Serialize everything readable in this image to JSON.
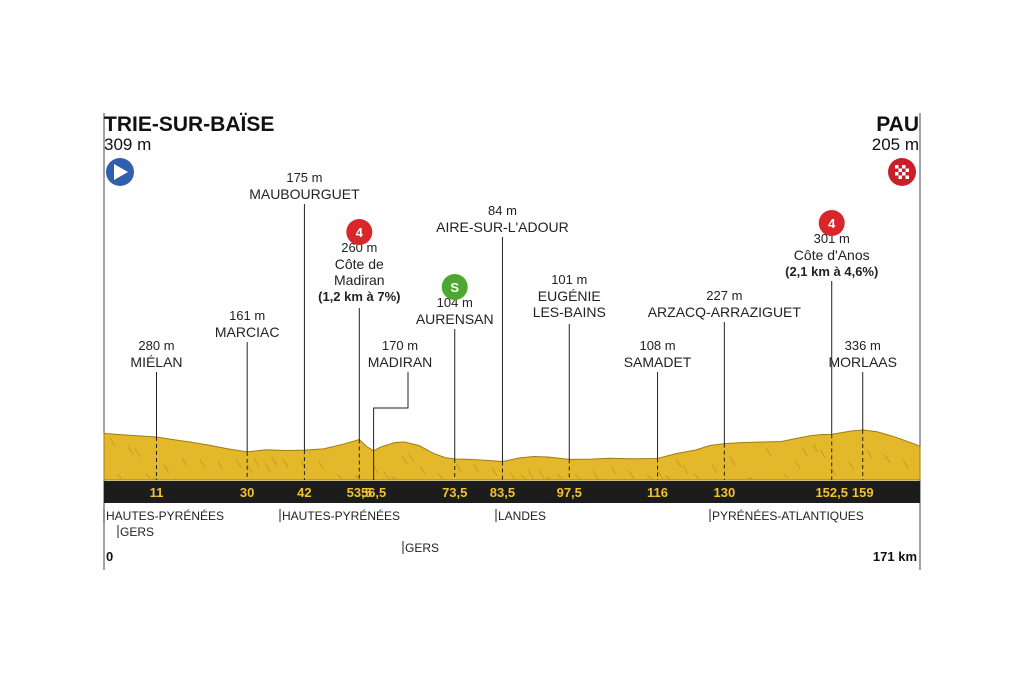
{
  "stage": {
    "start": {
      "name": "TRIE-SUR-BAÏSE",
      "altitude": "309 m",
      "icon": "start-play-icon",
      "color": "#2f5fad"
    },
    "finish": {
      "name": "PAU",
      "altitude": "205 m",
      "icon": "finish-checkered-flag-icon",
      "color": "#c8202a"
    },
    "distance_start": "0",
    "distance_end": "171 km"
  },
  "colors": {
    "terrain": "#e3b82a",
    "terrain_dark": "#a07c12",
    "km_bar": "#1c1c1c",
    "km_text": "#f2c230",
    "category4": "#d8262a",
    "sprint": "#4da832"
  },
  "chart_data": {
    "type": "area",
    "title": "",
    "xlabel": "",
    "ylabel": "",
    "xlim": [
      0,
      171
    ],
    "km_markers": [
      "11",
      "30",
      "42",
      "53,5",
      "56,5",
      "73,5",
      "83,5",
      "97,5",
      "116",
      "130",
      "152,5",
      "159"
    ],
    "waypoints": [
      {
        "km": 11,
        "km_label": "11",
        "altitude": "280 m",
        "name": "MIÉLAN"
      },
      {
        "km": 30,
        "km_label": "30",
        "altitude": "161 m",
        "name": "MARCIAC"
      },
      {
        "km": 42,
        "km_label": "42",
        "altitude": "175 m",
        "name": "MAUBOURGUET"
      },
      {
        "km": 53.5,
        "km_label": "53,5",
        "altitude": "260 m",
        "name": "Côte de",
        "name2": "Madiran",
        "note": "(1,2 km à 7%)",
        "badge": "4"
      },
      {
        "km": 56.5,
        "km_label": "56,5",
        "altitude": "170 m",
        "name": "MADIRAN"
      },
      {
        "km": 73.5,
        "km_label": "73,5",
        "altitude": "104 m",
        "name": "AURENSAN",
        "badge": "S"
      },
      {
        "km": 83.5,
        "km_label": "83,5",
        "altitude": "84 m",
        "name": "AIRE-SUR-L'ADOUR"
      },
      {
        "km": 97.5,
        "km_label": "97,5",
        "altitude": "101 m",
        "name": "EUGÉNIE",
        "name2": "LES-BAINS"
      },
      {
        "km": 116,
        "km_label": "116",
        "altitude": "108 m",
        "name": "SAMADET"
      },
      {
        "km": 130,
        "km_label": "130",
        "altitude": "227 m",
        "name": "ARZACQ-ARRAZIGUET"
      },
      {
        "km": 152.5,
        "km_label": "152,5",
        "altitude": "301 m",
        "name": "Côte d'Anos",
        "note": "(2,1 km à 4,6%)",
        "badge": "4"
      },
      {
        "km": 159,
        "km_label": "159",
        "altitude": "336 m",
        "name": "MORLAAS"
      }
    ],
    "profile": [
      [
        0,
        309
      ],
      [
        3,
        300
      ],
      [
        6,
        292
      ],
      [
        9,
        285
      ],
      [
        11,
        280
      ],
      [
        14,
        262
      ],
      [
        18,
        240
      ],
      [
        22,
        215
      ],
      [
        26,
        185
      ],
      [
        30,
        161
      ],
      [
        34,
        178
      ],
      [
        38,
        172
      ],
      [
        42,
        175
      ],
      [
        46,
        185
      ],
      [
        50,
        222
      ],
      [
        53.5,
        260
      ],
      [
        55,
        205
      ],
      [
        56.5,
        170
      ],
      [
        58,
        200
      ],
      [
        61,
        236
      ],
      [
        63,
        240
      ],
      [
        66,
        212
      ],
      [
        69,
        150
      ],
      [
        71.5,
        115
      ],
      [
        73.5,
        104
      ],
      [
        76,
        102
      ],
      [
        79,
        96
      ],
      [
        83.5,
        84
      ],
      [
        87,
        112
      ],
      [
        90,
        124
      ],
      [
        93,
        120
      ],
      [
        97.5,
        101
      ],
      [
        102,
        103
      ],
      [
        106,
        110
      ],
      [
        110,
        106
      ],
      [
        116,
        108
      ],
      [
        120,
        148
      ],
      [
        124,
        176
      ],
      [
        127,
        212
      ],
      [
        130,
        227
      ],
      [
        134,
        236
      ],
      [
        138,
        240
      ],
      [
        142,
        244
      ],
      [
        145,
        268
      ],
      [
        148,
        290
      ],
      [
        150.5,
        300
      ],
      [
        152.5,
        301
      ],
      [
        155,
        318
      ],
      [
        157,
        330
      ],
      [
        159,
        336
      ],
      [
        162,
        322
      ],
      [
        164,
        300
      ],
      [
        166,
        278
      ],
      [
        168,
        250
      ],
      [
        170,
        222
      ],
      [
        171,
        205
      ]
    ]
  },
  "regions": [
    {
      "label": "HAUTES-PYRÉNÉES",
      "row": 0
    },
    {
      "label": "GERS",
      "row": 1
    },
    {
      "label": "HAUTES-PYRÉNÉES",
      "row": 0
    },
    {
      "label": "GERS",
      "row": 2
    },
    {
      "label": "LANDES",
      "row": 0
    },
    {
      "label": "PYRÉNÉES-ATLANTIQUES",
      "row": 0
    }
  ]
}
